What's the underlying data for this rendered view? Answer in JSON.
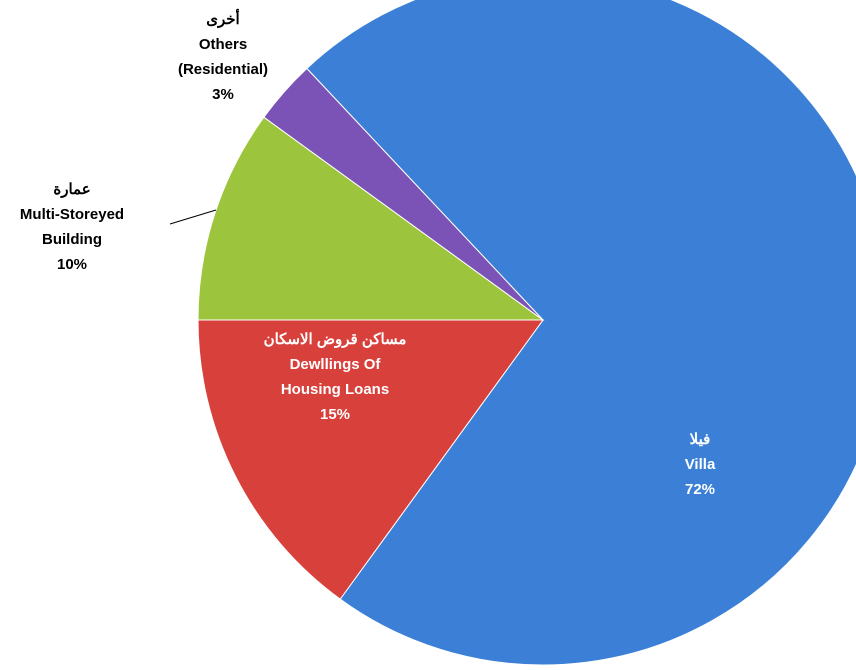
{
  "chart_data": {
    "type": "pie",
    "categories": [
      [
        "فيلا",
        "Villa"
      ],
      [
        "مساكن قروض الاسكان",
        "Dewllings Of",
        "Housing Loans"
      ],
      [
        "عمارة",
        "Multi-Storeyed",
        "Building"
      ],
      [
        "أخرى",
        "Others",
        "(Residential)"
      ]
    ],
    "values": [
      72,
      15,
      10,
      3
    ],
    "value_labels": [
      "72%",
      "15%",
      "10%",
      "3%"
    ],
    "colors": [
      "#3b80d6",
      "#d8403b",
      "#9cc43d",
      "#7b52b6"
    ]
  }
}
